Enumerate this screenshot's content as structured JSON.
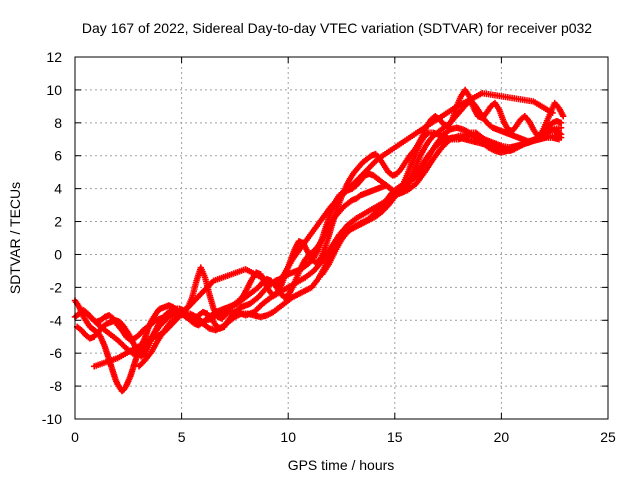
{
  "chart_data": {
    "type": "scatter",
    "title": "Day 167 of 2022, Sidereal Day-to-day VTEC variation (SDTVAR) for receiver p032",
    "xlabel": "GPS time / hours",
    "ylabel": "SDTVAR / TECUs",
    "xlim": [
      0,
      25
    ],
    "ylim": [
      -10,
      12
    ],
    "xticks": [
      0,
      5,
      10,
      15,
      20,
      25
    ],
    "yticks": [
      -10,
      -8,
      -6,
      -4,
      -2,
      0,
      2,
      4,
      6,
      8,
      10,
      12
    ],
    "grid": true,
    "marker": "plus",
    "colors": {
      "series": "#ff0000"
    },
    "series": [
      {
        "x": [
          0.0,
          0.1,
          0.2,
          0.3,
          0.4,
          0.5,
          0.6,
          0.7,
          0.8,
          0.9,
          1.0,
          1.1,
          1.2,
          1.3,
          1.4,
          1.5,
          1.6,
          1.7,
          1.8,
          1.9,
          2.0,
          2.1,
          2.2,
          2.3,
          2.4,
          2.5,
          2.6,
          2.7,
          2.8,
          2.9,
          3.0,
          3.1,
          3.2,
          3.3,
          3.4,
          3.5,
          3.6,
          3.7,
          3.8,
          3.9,
          4.0,
          4.2,
          4.4,
          4.6,
          4.8,
          5.0,
          5.2,
          5.4,
          5.6,
          5.8,
          6.0,
          6.2,
          6.4,
          6.6,
          6.8,
          7.0,
          7.2,
          7.4,
          7.6,
          7.8,
          8.0,
          8.2,
          8.4,
          8.6,
          8.8,
          9.0,
          9.2,
          9.4,
          9.6,
          9.8,
          10.0,
          10.2,
          10.4,
          10.6,
          10.8,
          11.0,
          11.2,
          11.4,
          11.6,
          11.8,
          12.0,
          12.2,
          12.4,
          12.6,
          12.8,
          13.0,
          13.2,
          13.4,
          13.6,
          13.8,
          14.0,
          14.2,
          14.4,
          14.6,
          14.8,
          15.0,
          15.2,
          15.4,
          15.6,
          15.8,
          16.0,
          16.2,
          16.4,
          16.6,
          16.8,
          17.0,
          17.2,
          17.4,
          17.6,
          17.8,
          18.0,
          18.2,
          18.4,
          18.6,
          18.8,
          19.0,
          19.2,
          19.4,
          19.6,
          19.8,
          20.0,
          20.2,
          20.4,
          20.6,
          20.8,
          21.0,
          21.2,
          21.4,
          21.6,
          21.8,
          22.0,
          22.2,
          22.4,
          22.6,
          22.8
        ],
        "y": [
          -2.8,
          -3.0,
          -3.2,
          -3.5,
          -3.8,
          -4.0,
          -4.2,
          -4.4,
          -4.5,
          -4.6,
          -4.7,
          -4.8,
          -5.0,
          -5.3,
          -5.6,
          -6.0,
          -6.4,
          -6.8,
          -7.2,
          -7.6,
          -7.9,
          -8.1,
          -8.3,
          -8.2,
          -8.0,
          -7.7,
          -7.4,
          -7.0,
          -6.6,
          -6.2,
          -5.9,
          -5.6,
          -5.3,
          -5.0,
          -4.6,
          -4.3,
          -4.0,
          -3.8,
          -3.6,
          -3.4,
          -3.3,
          -3.2,
          -3.1,
          -3.2,
          -3.4,
          -3.6,
          -3.8,
          -3.9,
          -3.9,
          -3.7,
          -3.5,
          -3.6,
          -3.9,
          -4.3,
          -4.5,
          -4.4,
          -4.0,
          -3.6,
          -3.4,
          -3.2,
          -3.1,
          -3.0,
          -2.8,
          -2.6,
          -2.3,
          -2.0,
          -1.8,
          -1.6,
          -1.5,
          -1.3,
          -1.2,
          -1.1,
          -1.0,
          -0.9,
          -0.7,
          -0.5,
          -0.2,
          0.3,
          1.0,
          1.8,
          2.6,
          3.2,
          3.6,
          3.8,
          3.9,
          4.0,
          4.2,
          4.5,
          4.8,
          4.9,
          4.8,
          4.6,
          4.4,
          4.2,
          4.0,
          3.8,
          3.9,
          4.3,
          4.9,
          5.6,
          6.2,
          6.8,
          7.2,
          7.4,
          7.4,
          7.3,
          7.2,
          7.1,
          7.0,
          7.0,
          7.0,
          7.1,
          7.2,
          7.4,
          7.4,
          7.2,
          7.0,
          6.8,
          6.6,
          6.5,
          6.4,
          6.3,
          6.3,
          6.4,
          6.6,
          6.7,
          6.8,
          6.9,
          7.0,
          7.1,
          7.3,
          7.5,
          7.6,
          7.5,
          7.3
        ]
      },
      {
        "x": [
          0.0,
          0.2,
          0.4,
          0.6,
          0.8,
          1.0,
          1.2,
          1.4,
          1.6,
          1.8,
          2.0,
          2.2,
          2.4,
          2.6,
          2.8,
          3.0,
          3.2,
          3.4,
          3.6,
          3.8,
          4.0,
          4.2,
          4.4,
          4.6,
          4.8,
          5.0,
          5.2,
          5.4,
          5.6,
          5.8,
          6.0,
          6.2,
          6.4,
          6.6,
          6.8,
          7.0,
          7.2,
          7.4,
          7.6,
          7.8,
          8.0,
          8.2,
          8.4,
          8.6,
          8.8,
          9.0,
          9.2,
          9.4,
          9.6,
          9.8,
          10.0,
          10.2,
          10.4,
          10.6,
          10.8,
          11.0,
          11.2,
          11.4,
          11.6,
          11.8,
          12.0,
          12.2,
          12.4,
          12.6,
          12.8,
          13.0,
          13.2,
          13.4,
          13.6,
          13.8,
          14.0,
          14.2,
          14.4,
          14.6,
          14.8,
          15.0,
          15.2,
          15.4,
          15.6,
          15.8,
          16.0,
          16.2,
          16.4,
          16.6,
          16.8,
          17.0,
          17.2,
          17.4,
          17.6,
          17.8,
          18.0,
          18.2,
          18.4,
          18.6,
          18.8,
          19.0,
          19.2,
          19.4,
          19.6,
          19.8,
          20.0,
          20.2,
          20.4,
          20.6,
          20.8,
          21.0,
          21.2,
          21.4,
          21.6,
          21.8,
          22.0,
          22.2,
          22.4,
          22.6,
          22.8
        ],
        "y": [
          -3.8,
          -3.6,
          -3.4,
          -3.6,
          -3.9,
          -4.1,
          -4.0,
          -3.8,
          -3.7,
          -3.9,
          -4.3,
          -4.6,
          -5.0,
          -5.2,
          -5.1,
          -4.9,
          -4.6,
          -4.4,
          -4.2,
          -4.0,
          -3.9,
          -3.8,
          -3.7,
          -3.6,
          -3.5,
          -3.5,
          -3.7,
          -4.0,
          -4.2,
          -4.3,
          -4.1,
          -3.9,
          -3.7,
          -3.5,
          -3.4,
          -3.3,
          -3.2,
          -3.1,
          -3.0,
          -2.8,
          -2.6,
          -2.4,
          -2.2,
          -2.0,
          -1.7,
          -1.5,
          -1.6,
          -1.9,
          -2.3,
          -2.6,
          -2.5,
          -2.0,
          -1.4,
          -0.8,
          -0.3,
          0.0,
          0.2,
          0.5,
          0.9,
          1.4,
          1.9,
          2.3,
          2.6,
          2.9,
          3.1,
          3.3,
          3.4,
          3.6,
          3.7,
          3.8,
          3.9,
          4.0,
          4.1,
          4.2,
          4.0,
          3.8,
          3.7,
          3.8,
          4.2,
          4.8,
          5.4,
          6.0,
          6.5,
          6.9,
          7.2,
          7.4,
          7.6,
          7.8,
          8.0,
          8.3,
          8.6,
          8.9,
          9.2,
          9.3,
          9.0,
          8.6,
          8.2,
          7.9,
          7.7,
          7.6,
          7.5,
          7.4,
          7.3,
          7.2,
          7.1,
          7.0,
          6.9,
          6.9,
          7.0,
          7.2,
          7.5,
          7.8,
          8.0,
          8.1,
          8.0
        ]
      },
      {
        "x": [
          3.0,
          3.3,
          3.6,
          3.9,
          4.2,
          4.5,
          4.8,
          5.1,
          5.4,
          5.7,
          6.0,
          6.3,
          6.6,
          6.9,
          7.2,
          7.5,
          7.8,
          8.1,
          8.4,
          8.7,
          9.0,
          9.3,
          9.6,
          9.9,
          10.2,
          10.5,
          10.8,
          11.1,
          11.4,
          11.7,
          12.0,
          12.3,
          12.6,
          12.9,
          13.2,
          13.5,
          13.8,
          14.1,
          14.4,
          14.7,
          15.0,
          15.3,
          15.6,
          15.9,
          16.2,
          16.5,
          16.8,
          17.1,
          17.4,
          17.7,
          18.0,
          18.3,
          18.6,
          18.9,
          19.2,
          19.5,
          19.8,
          20.1,
          20.4,
          20.7,
          21.0,
          21.3,
          21.6,
          21.9,
          22.2,
          22.5,
          22.8
        ],
        "y": [
          -6.8,
          -6.4,
          -5.9,
          -5.2,
          -4.6,
          -4.1,
          -3.8,
          -3.6,
          -3.6,
          -3.8,
          -4.2,
          -4.5,
          -4.6,
          -4.4,
          -4.1,
          -3.8,
          -3.6,
          -3.6,
          -3.7,
          -3.8,
          -3.7,
          -3.5,
          -3.2,
          -2.9,
          -2.6,
          -2.4,
          -2.2,
          -2.0,
          -1.5,
          -0.8,
          0.0,
          0.7,
          1.2,
          1.5,
          1.7,
          1.9,
          2.1,
          2.3,
          2.6,
          3.0,
          3.5,
          4.0,
          4.4,
          4.8,
          5.3,
          5.9,
          6.4,
          6.8,
          7.0,
          7.1,
          7.1,
          7.0,
          6.9,
          6.8,
          6.7,
          6.6,
          6.5,
          6.5,
          6.5,
          6.6,
          6.7,
          6.8,
          7.0,
          7.1,
          7.2,
          7.2,
          7.1
        ]
      },
      {
        "x": [
          0.1,
          0.3,
          0.5,
          0.7,
          0.9,
          1.1,
          1.3,
          1.5,
          1.7,
          1.9,
          2.1,
          2.3,
          2.5,
          2.7,
          2.9,
          3.1,
          3.3,
          3.5,
          3.7,
          3.9,
          4.1,
          4.3,
          4.5,
          4.7,
          4.9,
          5.1,
          5.3,
          5.5,
          5.7,
          5.9,
          6.1,
          6.3,
          6.5,
          6.7,
          6.9,
          7.1,
          7.3,
          7.5,
          7.7,
          7.9,
          8.1,
          8.3,
          8.5,
          8.7,
          8.9,
          9.1,
          9.3,
          9.5,
          9.7,
          9.9,
          10.1,
          10.3,
          10.5,
          10.7,
          10.9,
          11.1,
          11.3,
          11.5,
          11.7,
          11.9,
          12.1,
          12.3,
          12.5,
          12.7,
          12.9,
          13.1,
          13.3,
          13.5,
          13.7,
          13.9,
          14.1,
          14.3,
          14.5,
          14.7,
          14.9,
          15.1,
          15.3,
          15.5,
          15.7,
          15.9,
          16.1,
          16.3,
          16.5,
          16.7,
          16.9,
          17.1,
          17.3,
          17.5,
          17.7,
          17.9,
          18.1,
          18.3,
          18.5,
          18.7,
          18.9,
          19.1,
          19.3,
          19.5,
          19.7,
          19.9,
          20.1,
          20.3,
          20.5,
          20.7,
          20.9,
          21.1,
          21.3,
          21.5,
          21.7,
          21.9,
          22.1,
          22.3,
          22.5,
          22.7,
          22.9
        ],
        "y": [
          -4.4,
          -4.6,
          -4.9,
          -5.1,
          -5.0,
          -4.7,
          -4.4,
          -4.2,
          -4.1,
          -4.0,
          -4.1,
          -4.4,
          -4.8,
          -5.3,
          -5.8,
          -6.2,
          -6.0,
          -5.4,
          -4.8,
          -4.3,
          -3.9,
          -3.6,
          -3.4,
          -3.3,
          -3.3,
          -3.4,
          -3.2,
          -2.6,
          -1.6,
          -0.8,
          -1.4,
          -2.4,
          -3.3,
          -3.8,
          -3.9,
          -3.6,
          -3.2,
          -3.0,
          -2.8,
          -2.5,
          -2.0,
          -1.5,
          -1.1,
          -1.2,
          -1.7,
          -2.2,
          -2.5,
          -2.3,
          -1.8,
          -1.1,
          -0.4,
          0.3,
          0.8,
          0.7,
          0.2,
          -0.3,
          -0.5,
          -0.3,
          0.3,
          1.1,
          2.0,
          2.8,
          3.5,
          4.1,
          4.6,
          5.0,
          5.3,
          5.6,
          5.8,
          6.0,
          6.1,
          5.8,
          5.4,
          5.0,
          4.8,
          4.9,
          5.2,
          5.6,
          6.0,
          6.3,
          6.7,
          7.2,
          7.8,
          8.2,
          8.4,
          8.2,
          7.9,
          7.8,
          8.2,
          9.0,
          9.6,
          10.0,
          9.6,
          8.9,
          8.4,
          8.3,
          8.6,
          9.0,
          9.2,
          8.8,
          8.1,
          7.6,
          7.5,
          7.8,
          8.2,
          8.4,
          8.1,
          7.6,
          7.2,
          7.4,
          8.0,
          8.6,
          9.2,
          8.9,
          8.4
        ]
      },
      {
        "x": [
          11.6,
          11.9,
          12.2,
          12.5,
          12.8,
          13.1,
          13.4,
          13.7,
          14.0,
          14.3,
          14.6,
          14.9,
          15.2,
          15.5,
          15.8,
          16.1,
          16.4,
          16.7,
          17.0,
          17.3,
          17.6,
          17.9,
          18.2,
          18.5,
          18.8,
          19.1,
          19.4,
          19.7,
          20.0,
          20.3,
          20.6,
          20.9,
          21.2,
          21.5,
          21.8,
          22.1,
          22.4,
          22.7
        ],
        "y": [
          -1.2,
          -0.6,
          0.2,
          0.9,
          1.4,
          1.7,
          1.9,
          2.1,
          2.4,
          2.8,
          3.3,
          3.8,
          4.1,
          4.3,
          4.5,
          4.9,
          5.5,
          6.2,
          6.8,
          7.3,
          7.6,
          7.7,
          7.6,
          7.4,
          7.1,
          6.8,
          6.5,
          6.3,
          6.2,
          6.3,
          6.4,
          6.6,
          6.8,
          6.9,
          7.0,
          7.1,
          7.1,
          7.0
        ]
      },
      {
        "x": [
          0.4,
          0.8,
          1.2,
          1.6,
          2.0,
          2.4,
          2.8,
          3.2,
          3.6,
          4.0,
          4.4,
          4.8,
          5.2,
          5.6,
          6.0,
          6.4,
          6.8,
          7.2,
          7.6,
          8.0,
          8.4,
          8.8,
          9.2,
          9.6,
          10.0,
          10.4,
          10.8,
          11.2,
          11.6,
          12.0,
          12.4,
          12.8,
          13.2,
          13.6,
          14.0,
          14.4,
          14.8,
          15.2,
          15.6,
          16.0,
          16.4,
          16.8,
          17.2,
          17.6,
          18.0,
          18.4,
          18.8,
          19.2,
          19.6,
          20.0,
          20.4,
          20.8,
          21.2,
          21.6,
          22.0,
          22.4,
          22.8
        ],
        "y": [
          -3.4,
          -3.9,
          -4.4,
          -4.8,
          -5.2,
          -5.7,
          -6.1,
          -5.8,
          -5.0,
          -4.3,
          -3.8,
          -3.5,
          -3.6,
          -3.9,
          -4.1,
          -3.9,
          -3.6,
          -3.4,
          -3.5,
          -3.7,
          -3.5,
          -3.0,
          -2.6,
          -2.3,
          -2.0,
          -1.7,
          -1.4,
          -1.0,
          -0.4,
          0.4,
          1.2,
          1.8,
          2.2,
          2.5,
          2.8,
          3.1,
          3.4,
          3.7,
          3.9,
          4.3,
          5.0,
          5.8,
          6.5,
          7.0,
          7.2,
          7.3,
          7.2,
          7.0,
          6.8,
          6.6,
          6.5,
          6.6,
          6.8,
          7.0,
          7.3,
          7.6,
          7.7
        ]
      },
      {
        "x": [
          0.9,
          2.0,
          4.2,
          6.5,
          8.0,
          9.5,
          10.2,
          12.0,
          13.3,
          14.2,
          16.5,
          17.8,
          19.1,
          21.5,
          22.4
        ],
        "y": [
          -6.8,
          -6.3,
          -4.7,
          -1.6,
          -0.9,
          -1.9,
          -0.3,
          2.9,
          4.6,
          5.8,
          7.8,
          8.9,
          9.8,
          9.3,
          8.6
        ]
      }
    ]
  }
}
